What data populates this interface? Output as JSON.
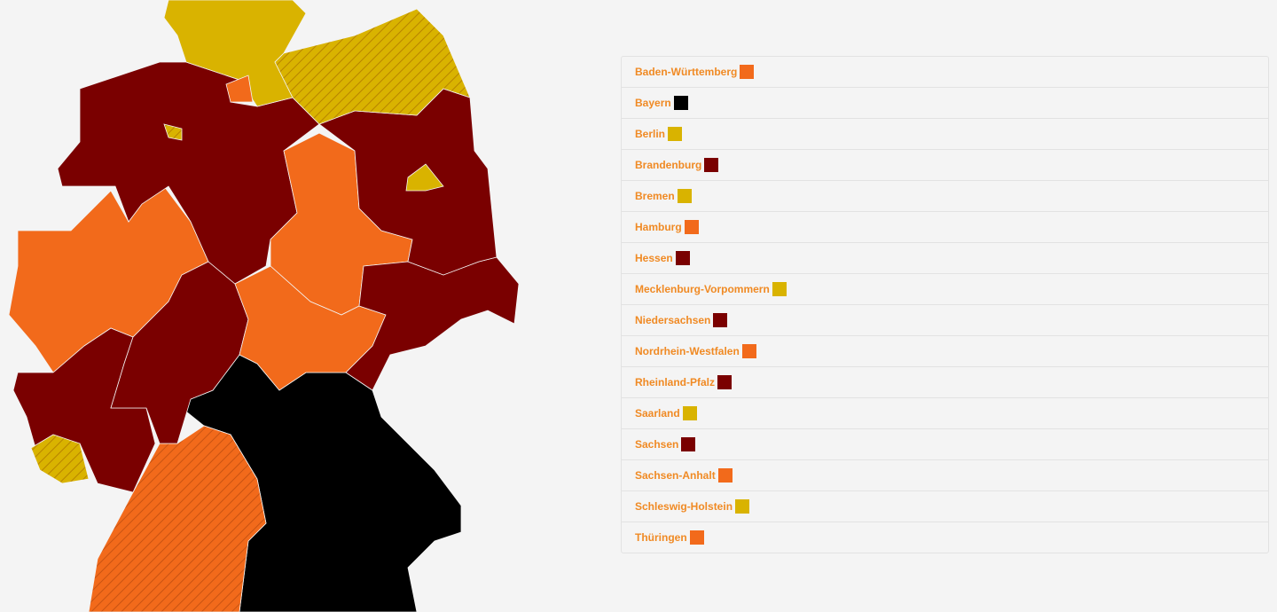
{
  "states": [
    {
      "label": "Baden-Württemberg",
      "color": "#f26a1b",
      "hatched": true
    },
    {
      "label": "Bayern",
      "color": "#000000",
      "hatched": false
    },
    {
      "label": "Berlin",
      "color": "#d9b300",
      "hatched": false
    },
    {
      "label": "Brandenburg",
      "color": "#7a0000",
      "hatched": false
    },
    {
      "label": "Bremen",
      "color": "#d9b300",
      "hatched": true
    },
    {
      "label": "Hamburg",
      "color": "#f26a1b",
      "hatched": false
    },
    {
      "label": "Hessen",
      "color": "#7a0000",
      "hatched": false
    },
    {
      "label": "Mecklenburg-Vorpommern",
      "color": "#d9b300",
      "hatched": true
    },
    {
      "label": "Niedersachsen",
      "color": "#7a0000",
      "hatched": false
    },
    {
      "label": "Nordrhein-Westfalen",
      "color": "#f26a1b",
      "hatched": false
    },
    {
      "label": "Rheinland-Pfalz",
      "color": "#7a0000",
      "hatched": false
    },
    {
      "label": "Saarland",
      "color": "#d9b300",
      "hatched": true
    },
    {
      "label": "Sachsen",
      "color": "#7a0000",
      "hatched": false
    },
    {
      "label": "Sachsen-Anhalt",
      "color": "#f26a1b",
      "hatched": false
    },
    {
      "label": "Schleswig-Holstein",
      "color": "#d9b300",
      "hatched": false
    },
    {
      "label": "Thüringen",
      "color": "#f26a1b",
      "hatched": false
    }
  ]
}
